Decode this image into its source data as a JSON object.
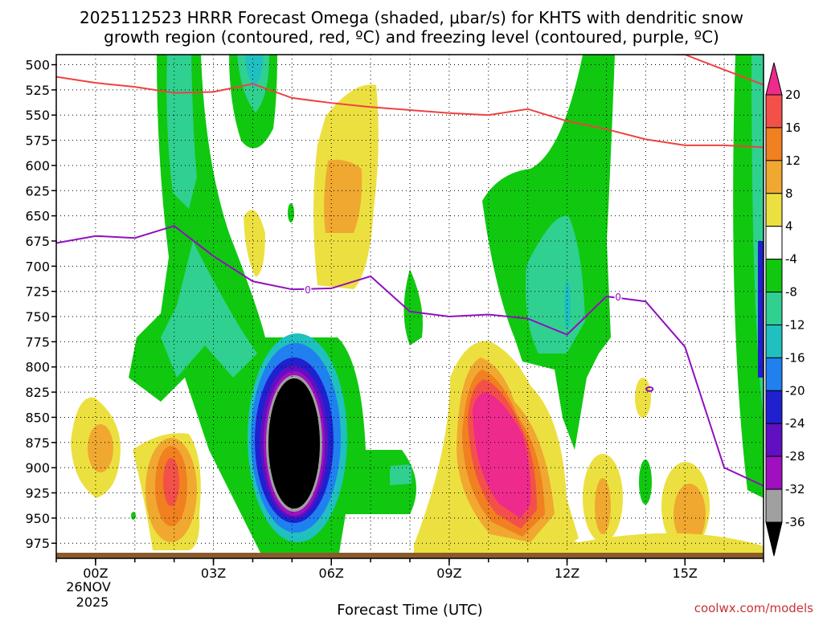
{
  "chart_data": {
    "type": "heatmap",
    "title_line1": "2025112523 HRRR Forecast Omega (shaded, μbar/s) for KHTS with dendritic snow",
    "title_line2": "growth region (contoured, red, ºC) and freezing level (contoured, purple, ºC)",
    "xlabel": "Forecast Time (UTC)",
    "ylabel": "Pressure (mb)",
    "credit": "coolwx.com/models",
    "x_ticks": [
      "00Z",
      "03Z",
      "06Z",
      "09Z",
      "12Z",
      "15Z"
    ],
    "x_tick_hours": [
      0,
      3,
      6,
      9,
      12,
      15
    ],
    "x_range_hours": [
      -1,
      17
    ],
    "date_label_line1": "26NOV",
    "date_label_line2": "2025",
    "y_ticks": [
      500,
      525,
      550,
      575,
      600,
      625,
      650,
      675,
      700,
      725,
      750,
      775,
      800,
      825,
      850,
      875,
      900,
      925,
      950,
      975
    ],
    "y_ticks_text": [
      "500",
      "525",
      "550",
      "575",
      "600",
      "625",
      "650",
      "675",
      "700",
      "725",
      "750",
      "775",
      "800",
      "825",
      "850",
      "875",
      "900",
      "925",
      "950",
      "975"
    ],
    "y_range_mb": [
      490,
      990
    ],
    "grid": true,
    "colorbar": {
      "labels": [
        "20",
        "16",
        "12",
        "8",
        "4",
        "-4",
        "-8",
        "-12",
        "-16",
        "-20",
        "-24",
        "-28",
        "-32",
        "-36"
      ],
      "colors": [
        "#ee2a8c",
        "#f4504a",
        "#f08020",
        "#f0a830",
        "#ece040",
        "#ffffff",
        "#10c810",
        "#30d090",
        "#20c0c0",
        "#2080f0",
        "#2020d0",
        "#6010c0",
        "#a010c0",
        "#a0a0a0",
        "#000000"
      ]
    },
    "freezing_level_label": "0",
    "dgz_series": [
      {
        "name": "dendritic growth top",
        "x": [
          -1,
          0,
          1,
          2,
          3,
          4,
          5,
          6,
          7,
          8,
          9,
          10,
          11,
          12,
          13,
          14,
          15,
          16,
          17
        ],
        "y": [
          512,
          518,
          522,
          528,
          527,
          519,
          533,
          538,
          542,
          545,
          548,
          550,
          544,
          556,
          564,
          574,
          580,
          580,
          582
        ]
      },
      {
        "name": "dendritic growth bottom",
        "x": [
          9.8,
          11,
          12,
          13,
          14,
          15,
          16,
          17
        ],
        "y": [
          489,
          489,
          489,
          489,
          489,
          490,
          505,
          520
        ]
      }
    ],
    "freezing_level": {
      "x": [
        -1,
        0,
        1,
        2,
        3,
        4,
        5,
        6,
        7,
        8,
        9,
        10,
        11,
        12,
        13,
        14,
        15,
        16,
        17
      ],
      "y": [
        677,
        670,
        672,
        660,
        690,
        715,
        723,
        722,
        710,
        745,
        750,
        748,
        752,
        768,
        730,
        735,
        780,
        900,
        918
      ]
    },
    "omega_regions": [
      {
        "name": "strong-rise-center",
        "value": -36,
        "center": [
          5.0,
          850
        ]
      },
      {
        "name": "sink-max",
        "value": 20,
        "center": [
          10.3,
          870
        ]
      },
      {
        "name": "sink-secondary",
        "value": 12,
        "center": [
          1.9,
          900
        ]
      },
      {
        "name": "sink-upper",
        "value": 8,
        "center": [
          6.3,
          625
        ]
      }
    ]
  }
}
